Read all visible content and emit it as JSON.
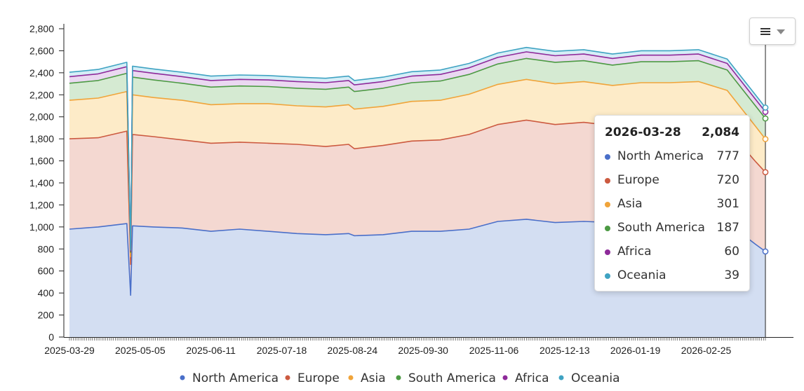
{
  "toolbar": {
    "menu_icon": "hamburger-menu-icon",
    "caret_icon": "chevron-down-icon"
  },
  "tooltip": {
    "date": "2026-03-28",
    "total": "2,084",
    "rows": [
      {
        "name": "North America",
        "value": "777"
      },
      {
        "name": "Europe",
        "value": "720"
      },
      {
        "name": "Asia",
        "value": "301"
      },
      {
        "name": "South America",
        "value": "187"
      },
      {
        "name": "Africa",
        "value": "60"
      },
      {
        "name": "Oceania",
        "value": "39"
      }
    ]
  },
  "chart_data": {
    "type": "area",
    "stacked": true,
    "title": "",
    "xlabel": "",
    "ylabel": "",
    "ylim": [
      0,
      2800
    ],
    "yticks": [
      0,
      200,
      400,
      600,
      800,
      1000,
      1200,
      1400,
      1600,
      1800,
      2000,
      2200,
      2400,
      2600,
      2800
    ],
    "ytick_labels": [
      "0",
      "200",
      "400",
      "600",
      "800",
      "1,000",
      "1,200",
      "1,400",
      "1,600",
      "1,800",
      "2,000",
      "2,200",
      "2,400",
      "2,600",
      "2,800"
    ],
    "x_start": "2025-03-29",
    "x_end": "2026-03-28",
    "xticks": [
      "2025-03-29",
      "2025-05-05",
      "2025-06-11",
      "2025-07-18",
      "2025-08-24",
      "2025-09-30",
      "2025-11-06",
      "2025-12-13",
      "2026-01-19",
      "2026-02-25"
    ],
    "legend_position": "bottom",
    "grid": false,
    "colors": {
      "North America": "#4a6fc9",
      "Europe": "#cc5a40",
      "Asia": "#f0a43a",
      "South America": "#4c9a43",
      "Africa": "#8e2a9a",
      "Oceania": "#3fa3c2"
    },
    "fill_colors": {
      "North America": "#d3def2",
      "Europe": "#f4d8d1",
      "Asia": "#fdebc8",
      "South America": "#d5ead2",
      "Africa": "#ead8f1",
      "Oceania": "#d6eef7"
    },
    "x": [
      "2025-03-29",
      "2025-04-13",
      "2025-04-28",
      "2025-04-30",
      "2025-05-01",
      "2025-05-12",
      "2025-05-27",
      "2025-06-11",
      "2025-06-26",
      "2025-07-11",
      "2025-07-26",
      "2025-08-10",
      "2025-08-22",
      "2025-08-25",
      "2025-09-09",
      "2025-09-24",
      "2025-10-09",
      "2025-10-24",
      "2025-11-08",
      "2025-11-23",
      "2025-12-08",
      "2025-12-23",
      "2026-01-07",
      "2026-01-22",
      "2026-02-06",
      "2026-02-21",
      "2026-03-08",
      "2026-03-23",
      "2026-03-28"
    ],
    "series": [
      {
        "name": "North America",
        "values": [
          980,
          1000,
          1030,
          380,
          1010,
          1000,
          990,
          960,
          980,
          960,
          940,
          930,
          940,
          920,
          930,
          960,
          960,
          980,
          1050,
          1070,
          1040,
          1050,
          1040,
          1080,
          1070,
          1080,
          1040,
          840,
          777
        ]
      },
      {
        "name": "Europe",
        "values": [
          820,
          810,
          840,
          280,
          830,
          820,
          800,
          800,
          790,
          800,
          810,
          800,
          810,
          790,
          810,
          820,
          830,
          860,
          880,
          900,
          890,
          900,
          880,
          870,
          880,
          880,
          850,
          750,
          720
        ]
      },
      {
        "name": "Asia",
        "values": [
          350,
          360,
          360,
          70,
          360,
          355,
          360,
          350,
          350,
          360,
          350,
          360,
          360,
          360,
          355,
          360,
          360,
          365,
          365,
          370,
          370,
          370,
          365,
          360,
          360,
          360,
          350,
          320,
          301
        ]
      },
      {
        "name": "South America",
        "values": [
          155,
          160,
          165,
          40,
          160,
          160,
          155,
          160,
          160,
          155,
          160,
          160,
          160,
          160,
          165,
          170,
          175,
          180,
          185,
          190,
          195,
          190,
          185,
          190,
          190,
          190,
          185,
          185,
          187
        ]
      },
      {
        "name": "Africa",
        "values": [
          60,
          60,
          60,
          10,
          60,
          60,
          60,
          60,
          60,
          60,
          60,
          60,
          60,
          60,
          60,
          60,
          60,
          60,
          60,
          60,
          60,
          60,
          60,
          60,
          60,
          60,
          60,
          60,
          60
        ]
      },
      {
        "name": "Oceania",
        "values": [
          40,
          40,
          40,
          10,
          40,
          40,
          40,
          40,
          40,
          40,
          40,
          40,
          40,
          40,
          40,
          40,
          40,
          40,
          40,
          40,
          40,
          40,
          40,
          40,
          40,
          40,
          40,
          40,
          39
        ]
      }
    ]
  }
}
